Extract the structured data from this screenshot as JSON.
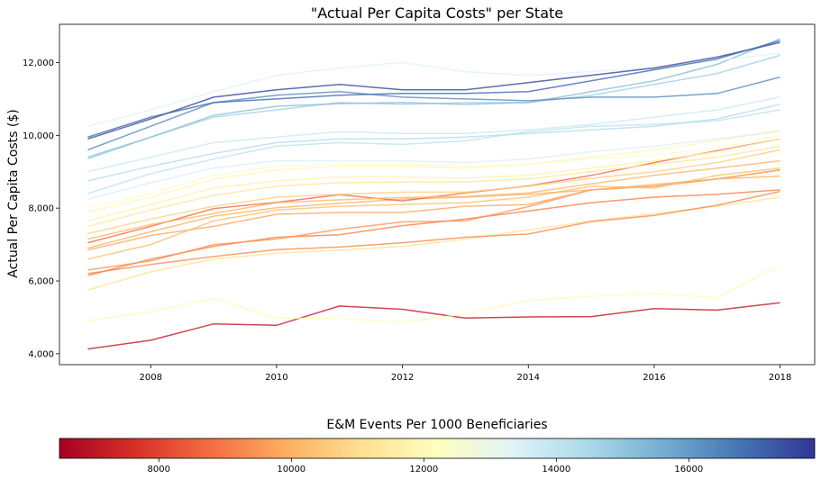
{
  "chart_data": {
    "type": "line",
    "title": "\"Actual Per Capita Costs\" per State",
    "xlabel": "",
    "ylabel": "Actual Per Capita Costs ($)",
    "x": [
      2007,
      2008,
      2009,
      2010,
      2011,
      2012,
      2013,
      2014,
      2015,
      2016,
      2017,
      2018
    ],
    "xlim": [
      2006.55,
      2018.55
    ],
    "ylim": [
      3700,
      13050
    ],
    "xticks": [
      2008,
      2010,
      2012,
      2014,
      2016,
      2018
    ],
    "xtick_labels": [
      "2008",
      "2010",
      "2012",
      "2014",
      "2016",
      "2018"
    ],
    "yticks": [
      4000,
      6000,
      8000,
      10000,
      12000
    ],
    "ytick_labels": [
      "4,000",
      "6,000",
      "8,000",
      "10,000",
      "12,000"
    ],
    "grid": false,
    "legend": "none",
    "colorbar": {
      "title": "E&M Events Per 1000 Beneficiaries",
      "range": [
        6500,
        17900
      ],
      "ticks": [
        8000,
        10000,
        12000,
        14000,
        16000
      ],
      "tick_labels": [
        "8000",
        "10000",
        "12000",
        "14000",
        "16000"
      ],
      "colormap": "RdYlBu",
      "stops": [
        "#a50026",
        "#d73027",
        "#f46d43",
        "#fdae61",
        "#fee090",
        "#ffffbf",
        "#e0f3f8",
        "#abd9e9",
        "#74add1",
        "#4575b4",
        "#313695"
      ]
    },
    "series": [
      {
        "c": 7100,
        "values": [
          4130,
          4370,
          4820,
          4780,
          5310,
          5220,
          4980,
          5010,
          5020,
          5240,
          5200,
          5400
        ]
      },
      {
        "c": 12000,
        "values": [
          4900,
          5160,
          5520,
          4980,
          4970,
          4870,
          5090,
          5460,
          5580,
          5650,
          5540,
          6450
        ]
      },
      {
        "c": 11200,
        "values": [
          5750,
          6250,
          6600,
          6760,
          6850,
          6950,
          7150,
          7400,
          7650,
          7850,
          8050,
          8300
        ]
      },
      {
        "c": 9300,
        "values": [
          6200,
          6450,
          6670,
          6860,
          6930,
          7050,
          7200,
          7290,
          7630,
          7800,
          8080,
          8460
        ]
      },
      {
        "c": 9100,
        "values": [
          6150,
          6600,
          6950,
          7200,
          7270,
          7520,
          7700,
          7920,
          8150,
          8300,
          8380,
          8500
        ]
      },
      {
        "c": 9500,
        "values": [
          6300,
          6550,
          7000,
          7150,
          7420,
          7620,
          7650,
          8040,
          8500,
          8600,
          8800,
          9050
        ]
      },
      {
        "c": 9800,
        "values": [
          6850,
          7250,
          7500,
          7830,
          7880,
          7880,
          8050,
          8100,
          8500,
          8600,
          8800,
          9050
        ]
      },
      {
        "c": 10300,
        "values": [
          6600,
          7000,
          7650,
          7950,
          8050,
          8100,
          8150,
          8300,
          8600,
          8550,
          8900,
          9100
        ]
      },
      {
        "c": 10000,
        "values": [
          6900,
          7350,
          7780,
          8010,
          8130,
          8250,
          8300,
          8380,
          8500,
          8650,
          8800,
          8880
        ]
      },
      {
        "c": 8700,
        "values": [
          7050,
          7500,
          7990,
          8160,
          8370,
          8200,
          8420,
          8610,
          8900,
          9250,
          9580,
          9900
        ]
      },
      {
        "c": 10100,
        "values": [
          7150,
          7550,
          7850,
          8150,
          8230,
          8290,
          8320,
          8420,
          8670,
          8900,
          9100,
          9300
        ]
      },
      {
        "c": 10700,
        "values": [
          7300,
          7700,
          8050,
          8300,
          8380,
          8440,
          8440,
          8600,
          8820,
          9000,
          9250,
          9600
        ]
      },
      {
        "c": 11300,
        "values": [
          7500,
          7950,
          8350,
          8600,
          8700,
          8720,
          8720,
          8800,
          9000,
          9200,
          9400,
          9700
        ]
      },
      {
        "c": 11700,
        "values": [
          7650,
          8100,
          8550,
          8750,
          8850,
          8850,
          8830,
          8900,
          9100,
          9300,
          9550,
          9900
        ]
      },
      {
        "c": 11900,
        "values": [
          7900,
          8300,
          8800,
          9050,
          9150,
          9150,
          9100,
          9200,
          9400,
          9600,
          9850,
          10150
        ]
      },
      {
        "c": 12500,
        "values": [
          8000,
          8400,
          8900,
          9150,
          9200,
          9200,
          9150,
          9200,
          9350,
          9450,
          9650,
          10000
        ]
      },
      {
        "c": 13500,
        "values": [
          8250,
          8700,
          9100,
          9300,
          9300,
          9300,
          9250,
          9350,
          9550,
          9700,
          9900,
          10100
        ]
      },
      {
        "c": 14100,
        "values": [
          8400,
          8950,
          9350,
          9700,
          9800,
          9750,
          9850,
          10100,
          10250,
          10300,
          10400,
          10700
        ]
      },
      {
        "c": 14300,
        "values": [
          8750,
          9150,
          9500,
          9800,
          9900,
          9900,
          9950,
          10050,
          10150,
          10250,
          10450,
          10850
        ]
      },
      {
        "c": 13800,
        "values": [
          9000,
          9400,
          9800,
          9950,
          10100,
          10050,
          10050,
          10150,
          10300,
          10500,
          10700,
          11050
        ]
      },
      {
        "c": 14700,
        "values": [
          9350,
          9950,
          10500,
          10700,
          10900,
          10850,
          10900,
          10900,
          11100,
          11400,
          11700,
          12200
        ]
      },
      {
        "c": 15200,
        "values": [
          9400,
          9950,
          10550,
          10800,
          10870,
          10900,
          10850,
          10900,
          11200,
          11500,
          11950,
          12650
        ]
      },
      {
        "c": 13300,
        "values": [
          10250,
          10700,
          11200,
          11650,
          11850,
          12000,
          11750,
          11650,
          11750,
          11850,
          12050,
          12250
        ]
      },
      {
        "c": 16300,
        "values": [
          9600,
          10250,
          10900,
          11100,
          11200,
          11050,
          11000,
          10950,
          11050,
          11050,
          11150,
          11600
        ]
      },
      {
        "c": 17600,
        "values": [
          9900,
          10450,
          11050,
          11250,
          11400,
          11250,
          11250,
          11450,
          11650,
          11850,
          12150,
          12550
        ]
      },
      {
        "c": 17000,
        "values": [
          9950,
          10500,
          10900,
          11000,
          11100,
          11150,
          11150,
          11200,
          11500,
          11800,
          12100,
          12600
        ]
      }
    ]
  }
}
